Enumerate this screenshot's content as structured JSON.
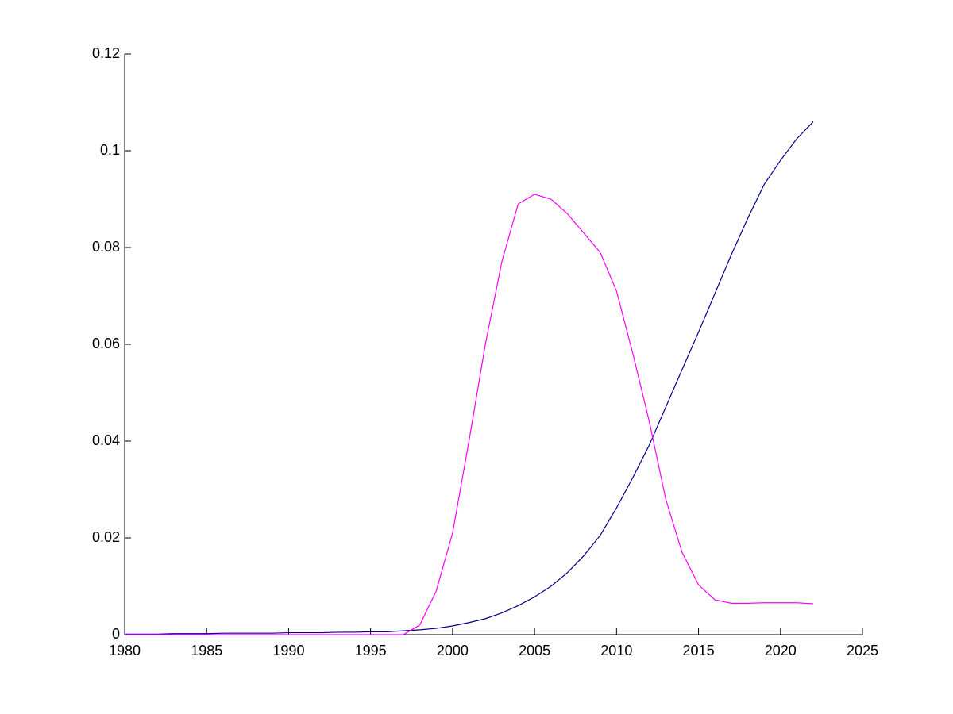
{
  "chart_data": {
    "type": "line",
    "x": [
      1980,
      1981,
      1982,
      1983,
      1984,
      1985,
      1986,
      1987,
      1988,
      1989,
      1990,
      1991,
      1992,
      1993,
      1994,
      1995,
      1996,
      1997,
      1998,
      1999,
      2000,
      2001,
      2002,
      2003,
      2004,
      2005,
      2006,
      2007,
      2008,
      2009,
      2010,
      2011,
      2012,
      2013,
      2014,
      2015,
      2016,
      2017,
      2018,
      2019,
      2020,
      2021,
      2022
    ],
    "series": [
      {
        "color": "#00008b",
        "values": [
          0.0001,
          0.0001,
          0.0001,
          0.0002,
          0.0002,
          0.0002,
          0.0003,
          0.0003,
          0.0003,
          0.0003,
          0.0004,
          0.0004,
          0.0004,
          0.0005,
          0.0005,
          0.0006,
          0.0006,
          0.0008,
          0.001,
          0.0013,
          0.0018,
          0.0025,
          0.0033,
          0.0045,
          0.006,
          0.0078,
          0.01,
          0.0128,
          0.0163,
          0.0205,
          0.0262,
          0.0325,
          0.0392,
          0.047,
          0.0548,
          0.0625,
          0.0705,
          0.0785,
          0.086,
          0.093,
          0.098,
          0.1025,
          0.106
        ]
      },
      {
        "color": "#ff00ff",
        "values": [
          0,
          0,
          0,
          0,
          0,
          0,
          0,
          0,
          0,
          0,
          0,
          0,
          0,
          0,
          0,
          0,
          0,
          0,
          0.002,
          0.009,
          0.021,
          0.04,
          0.06,
          0.077,
          0.089,
          0.091,
          0.09,
          0.087,
          0.083,
          0.079,
          0.071,
          0.058,
          0.044,
          0.028,
          0.017,
          0.0103,
          0.0072,
          0.0065,
          0.0065,
          0.0066,
          0.0066,
          0.0066,
          0.0064
        ]
      }
    ],
    "xlim": [
      1980,
      2025
    ],
    "xticks": [
      1980,
      1985,
      1990,
      1995,
      2000,
      2005,
      2010,
      2015,
      2020,
      2025
    ],
    "ylim": [
      0,
      0.12
    ],
    "yticks": [
      0,
      0.02,
      0.04,
      0.06,
      0.08,
      0.1,
      0.12
    ]
  }
}
